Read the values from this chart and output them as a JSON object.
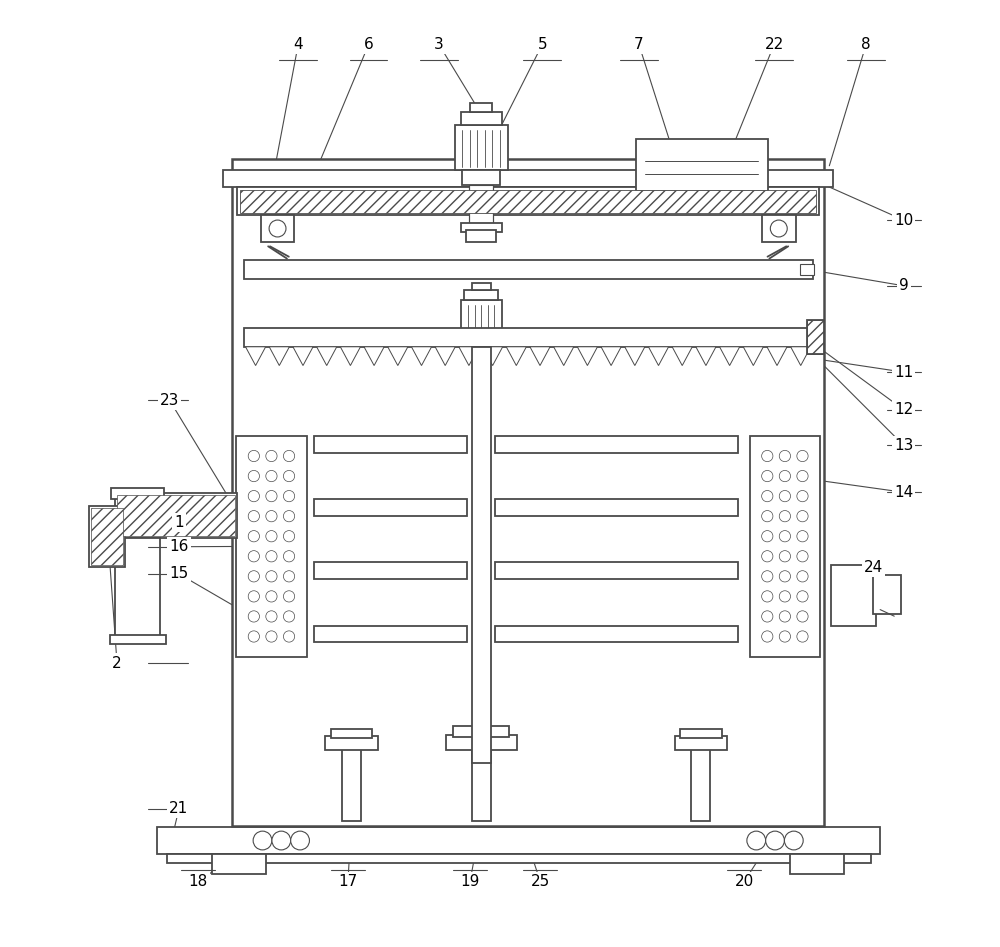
{
  "bg_color": "#ffffff",
  "line_color": "#4a4a4a",
  "label_color": "#000000",
  "fig_width": 10.0,
  "fig_height": 9.47,
  "TL": 0.215,
  "TR": 0.845,
  "TB": 0.125,
  "TT": 0.835,
  "BL": 0.135,
  "BR": 0.905,
  "BY": 0.095,
  "BH": 0.028
}
